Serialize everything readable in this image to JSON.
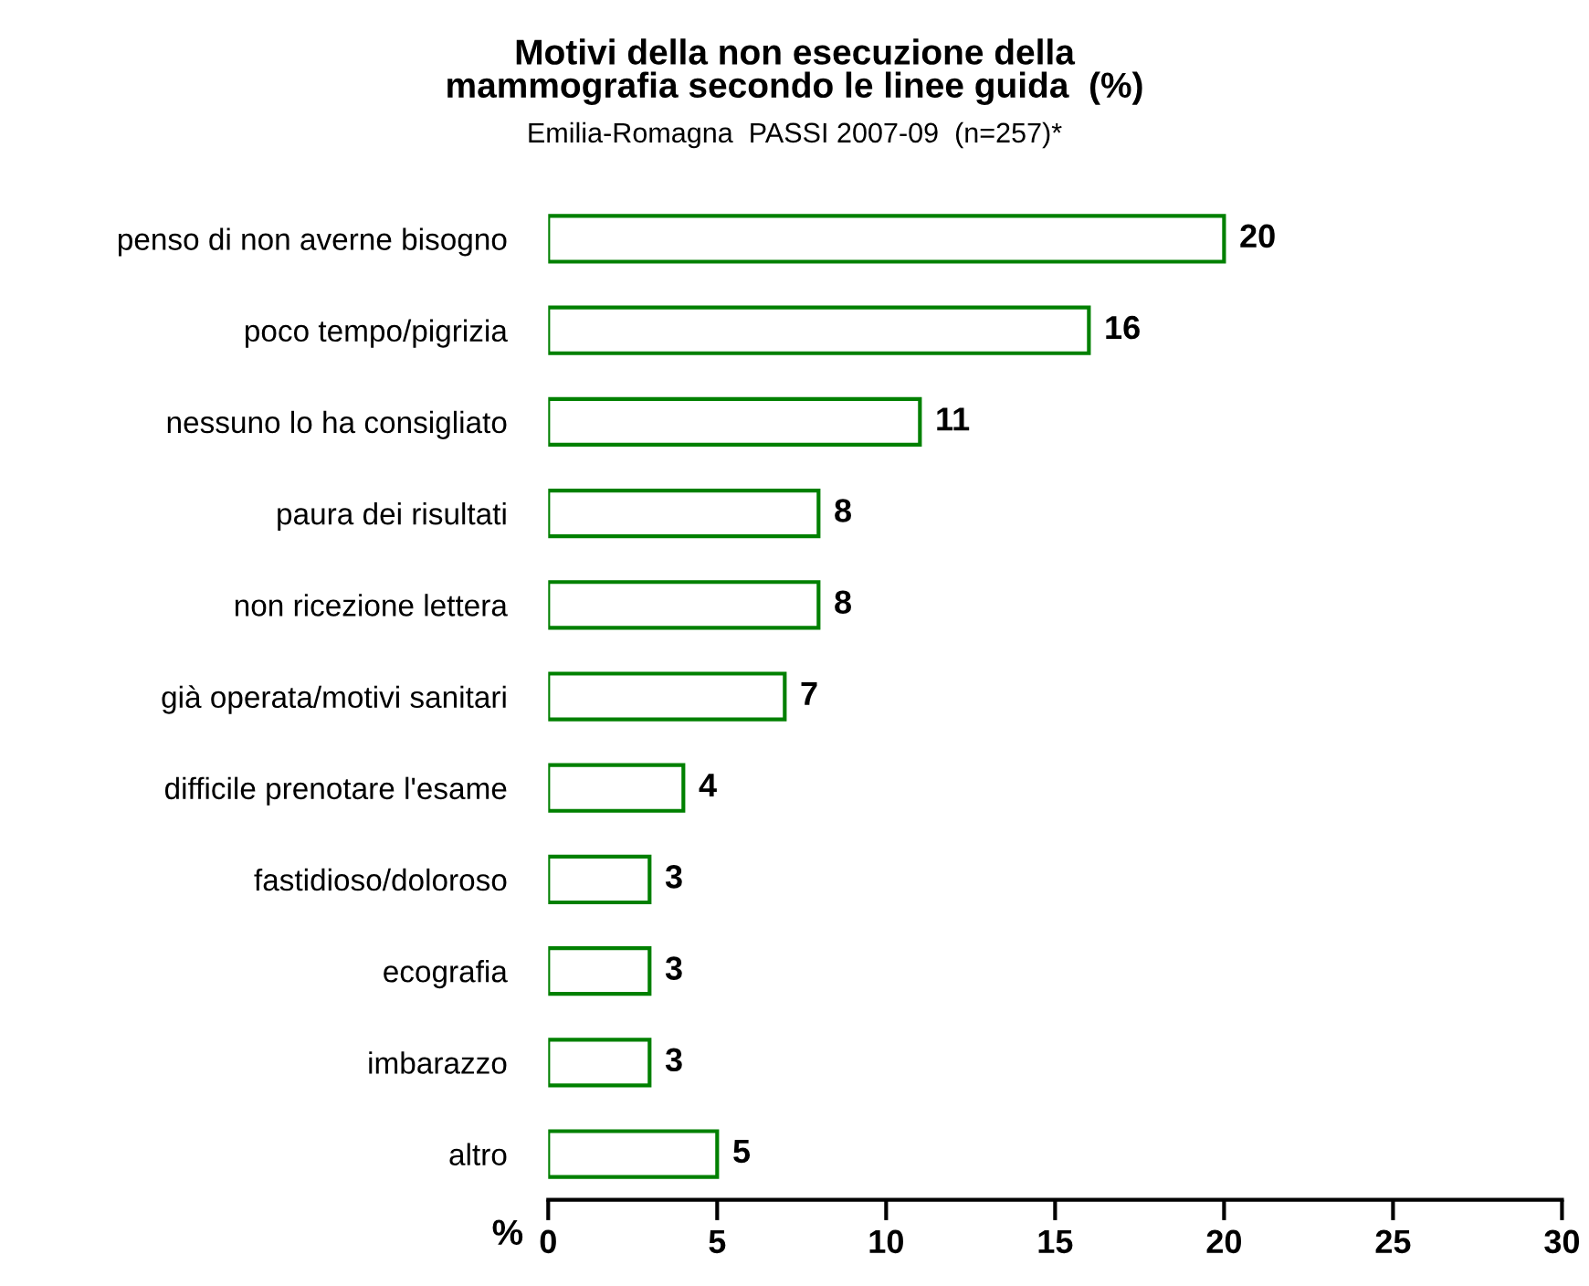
{
  "chart_data": {
    "type": "bar",
    "orientation": "horizontal",
    "title": "Motivi della non esecuzione della\nmammografia secondo le linee guida  (%)",
    "subtitle": "Emilia-Romagna  PASSI 2007-09  (n=257)*",
    "xlabel": "%",
    "categories": [
      "penso di non averne bisogno",
      "poco tempo/pigrizia",
      "nessuno lo ha consigliato",
      "paura dei risultati",
      "non ricezione lettera",
      "già operata/motivi sanitari",
      "difficile prenotare l'esame",
      "fastidioso/doloroso",
      "ecografia",
      "imbarazzo",
      "altro"
    ],
    "values": [
      20,
      16,
      11,
      8,
      8,
      7,
      4,
      3,
      3,
      3,
      5
    ],
    "color": "#008000",
    "data_labels": true,
    "xlim": [
      0,
      30
    ],
    "xticks": [
      0,
      5,
      10,
      15,
      20,
      25,
      30
    ],
    "grid": false,
    "legend": false
  }
}
